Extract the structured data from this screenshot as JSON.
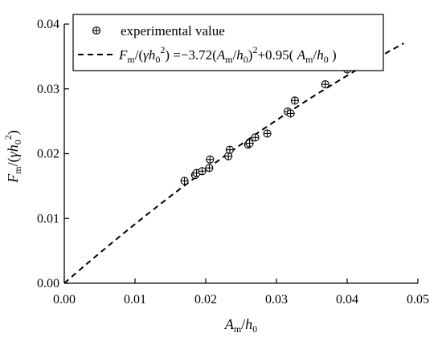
{
  "chart_data": {
    "type": "scatter",
    "xlim": [
      0,
      0.05
    ],
    "ylim": [
      0,
      0.04
    ],
    "x_ticks": [
      "0.00",
      "0.01",
      "0.02",
      "0.03",
      "0.04",
      "0.05"
    ],
    "y_ticks": [
      "0.00",
      "0.01",
      "0.02",
      "0.03",
      "0.04"
    ],
    "xlabel": {
      "A": "A",
      "m": "m",
      "slash": "/",
      "h": "h",
      "zero": "0"
    },
    "ylabel": {
      "F": "F",
      "m": "m",
      "open": "/(",
      "gamma": "γ",
      "h": "h",
      "zero": "0",
      "two": "2",
      "close": ")"
    },
    "legend_placement": "top",
    "series": [
      {
        "name": "experimental value",
        "kind": "scatter",
        "marker": "circle-plus",
        "color": "#000000",
        "points": [
          [
            0.017,
            0.0158
          ],
          [
            0.0185,
            0.0167
          ],
          [
            0.0187,
            0.017
          ],
          [
            0.0195,
            0.0173
          ],
          [
            0.0205,
            0.0178
          ],
          [
            0.0206,
            0.0191
          ],
          [
            0.0232,
            0.0196
          ],
          [
            0.0234,
            0.0206
          ],
          [
            0.026,
            0.0214
          ],
          [
            0.0262,
            0.0216
          ],
          [
            0.027,
            0.0225
          ],
          [
            0.0287,
            0.0231
          ],
          [
            0.0316,
            0.0265
          ],
          [
            0.032,
            0.0262
          ],
          [
            0.0326,
            0.0282
          ],
          [
            0.0369,
            0.0307
          ],
          [
            0.04,
            0.033
          ],
          [
            0.0433,
            0.034
          ]
        ]
      },
      {
        "kind": "line",
        "style": "dashed",
        "color": "#000000",
        "coefficients": {
          "a": -3.72,
          "b": 0.95
        },
        "x_range": [
          0,
          0.048
        ],
        "legend_label": {
          "F": "F",
          "m1": "m",
          "open": "/(",
          "gamma": "γ",
          "h1": "h",
          "zero1": "0",
          "sq1": "2",
          "mid": ") =−3.72(",
          "A1": "A",
          "m2": "m",
          "slash1": "/",
          "h2": "h",
          "zero2": "0",
          "close1": ")",
          "sq2": "2",
          "plus": "+0.95( ",
          "A2": "A",
          "m3": "m",
          "slash2": "/",
          "h3": "h",
          "zero3": "0",
          "close2": " )"
        }
      }
    ]
  }
}
